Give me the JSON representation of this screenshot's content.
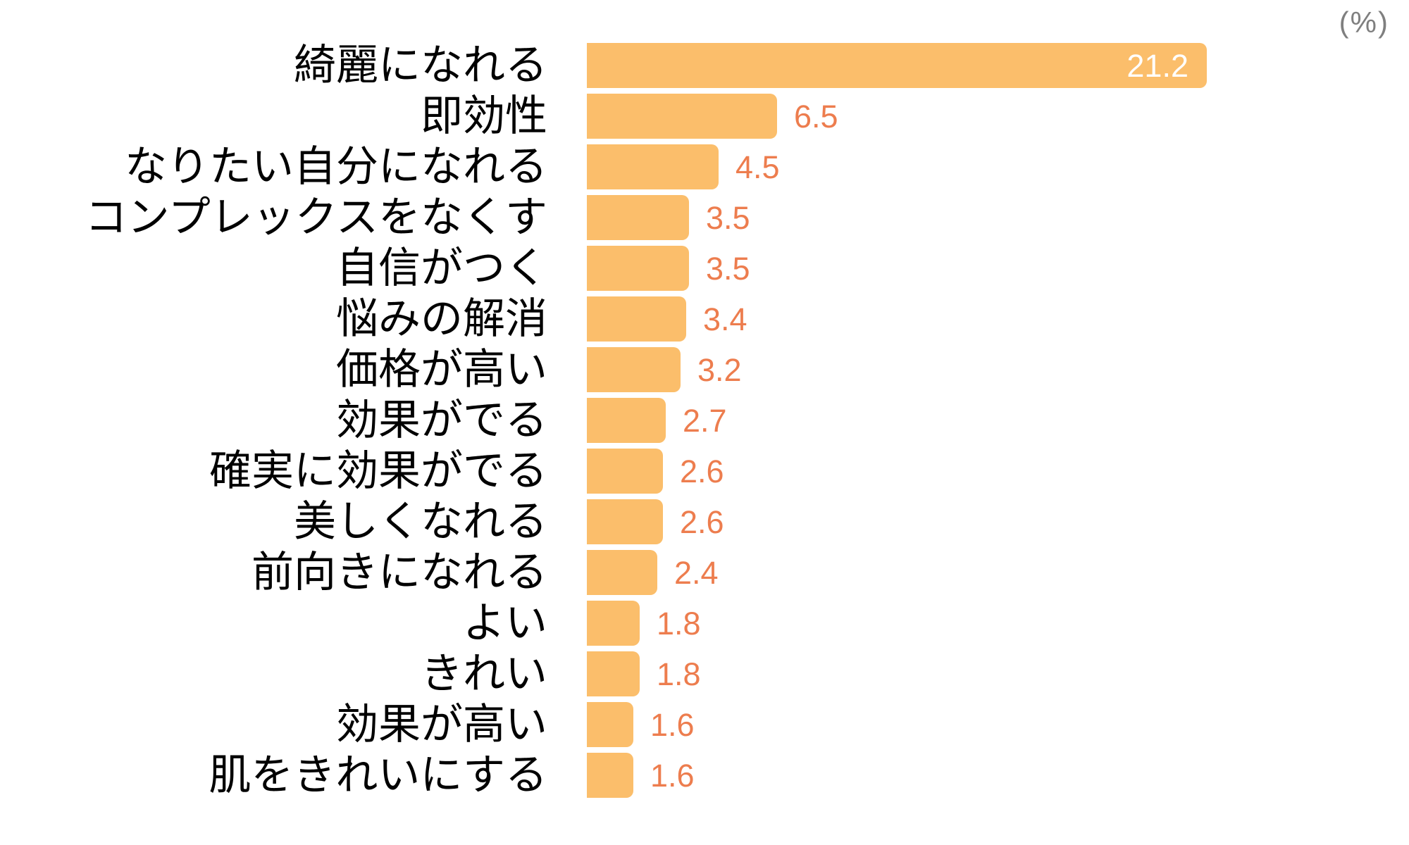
{
  "chart": {
    "unit_label": "(%)",
    "colors": {
      "bar": "#FBBE6B",
      "value_outside": "#ED7D4E",
      "value_inside": "#FFFFFF",
      "category_label": "#000000",
      "unit_label": "#7F7F7F"
    }
  },
  "chart_data": {
    "type": "bar",
    "orientation": "horizontal",
    "unit": "%",
    "title": "",
    "xlabel": "",
    "ylabel": "",
    "grid": false,
    "legend": false,
    "axis_lines": false,
    "xlim": [
      0,
      21.2
    ],
    "categories": [
      "綺麗になれる",
      "即効性",
      "なりたい自分になれる",
      "コンプレックスをなくす",
      "自信がつく",
      "悩みの解消",
      "価格が高い",
      "効果がでる",
      "確実に効果がでる",
      "美しくなれる",
      "前向きになれる",
      "よい",
      "きれい",
      "効果が高い",
      "肌をきれいにする"
    ],
    "values": [
      21.2,
      6.5,
      4.5,
      3.5,
      3.5,
      3.4,
      3.2,
      2.7,
      2.6,
      2.6,
      2.4,
      1.8,
      1.8,
      1.6,
      1.6
    ],
    "value_labels_shown": true,
    "max_value_label_inside_bar": true
  }
}
